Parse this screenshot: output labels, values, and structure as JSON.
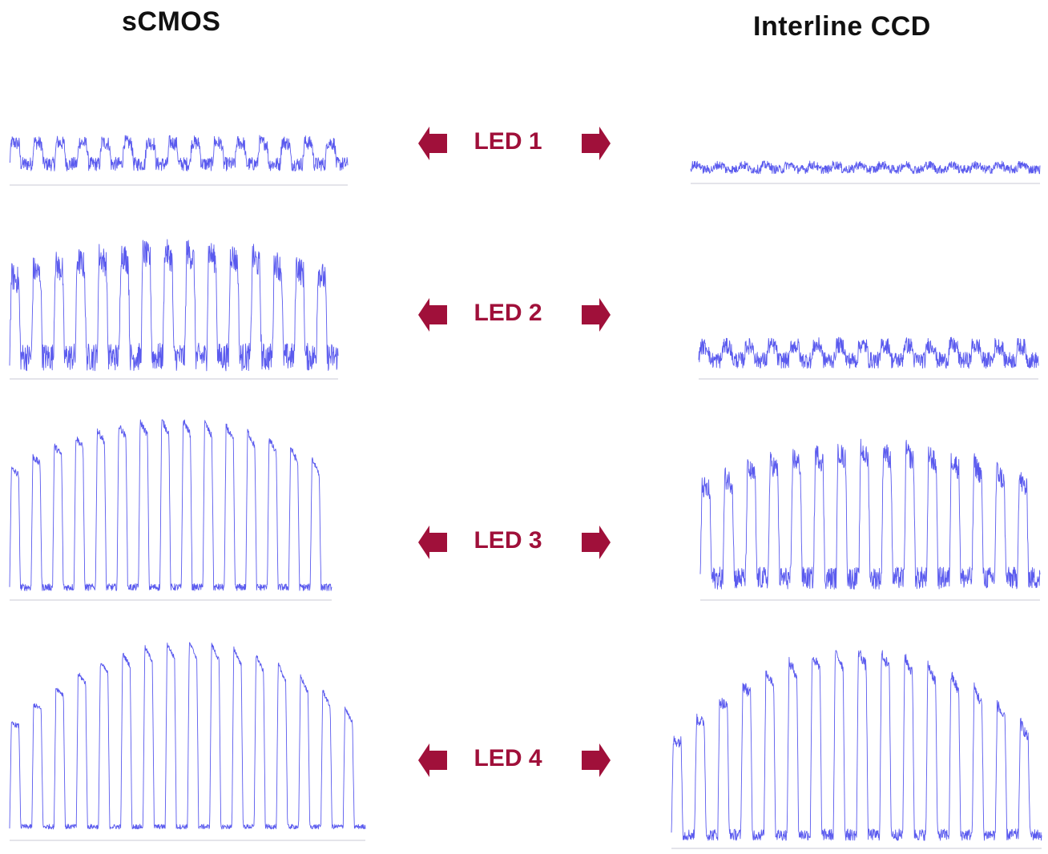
{
  "columns": {
    "left_title": "sCMOS",
    "right_title": "Interline CCD"
  },
  "leds": [
    {
      "label": "LED 1"
    },
    {
      "label": "LED 2"
    },
    {
      "label": "LED 3"
    },
    {
      "label": "LED 4"
    }
  ],
  "colors": {
    "trace": "#5a5aee",
    "baseline": "#c9c9d6",
    "arrow": "#a0103a",
    "label": "#a0103a"
  },
  "traces": {
    "scmos": [
      {
        "cycles": 15,
        "modulation": 0.35,
        "noise": 0.35,
        "arch": 0.0
      },
      {
        "cycles": 15,
        "modulation": 0.75,
        "noise": 0.35,
        "arch": 0.25
      },
      {
        "cycles": 15,
        "modulation": 1.0,
        "noise": 0.08,
        "arch": 0.3
      },
      {
        "cycles": 16,
        "modulation": 1.0,
        "noise": 0.05,
        "arch": 0.45
      }
    ],
    "ccd": [
      {
        "cycles": 15,
        "modulation": 0.15,
        "noise": 0.45,
        "arch": 0.0
      },
      {
        "cycles": 15,
        "modulation": 0.3,
        "noise": 0.5,
        "arch": 0.1
      },
      {
        "cycles": 15,
        "modulation": 0.8,
        "noise": 0.25,
        "arch": 0.3
      },
      {
        "cycles": 16,
        "modulation": 1.0,
        "noise": 0.12,
        "arch": 0.5
      }
    ]
  }
}
